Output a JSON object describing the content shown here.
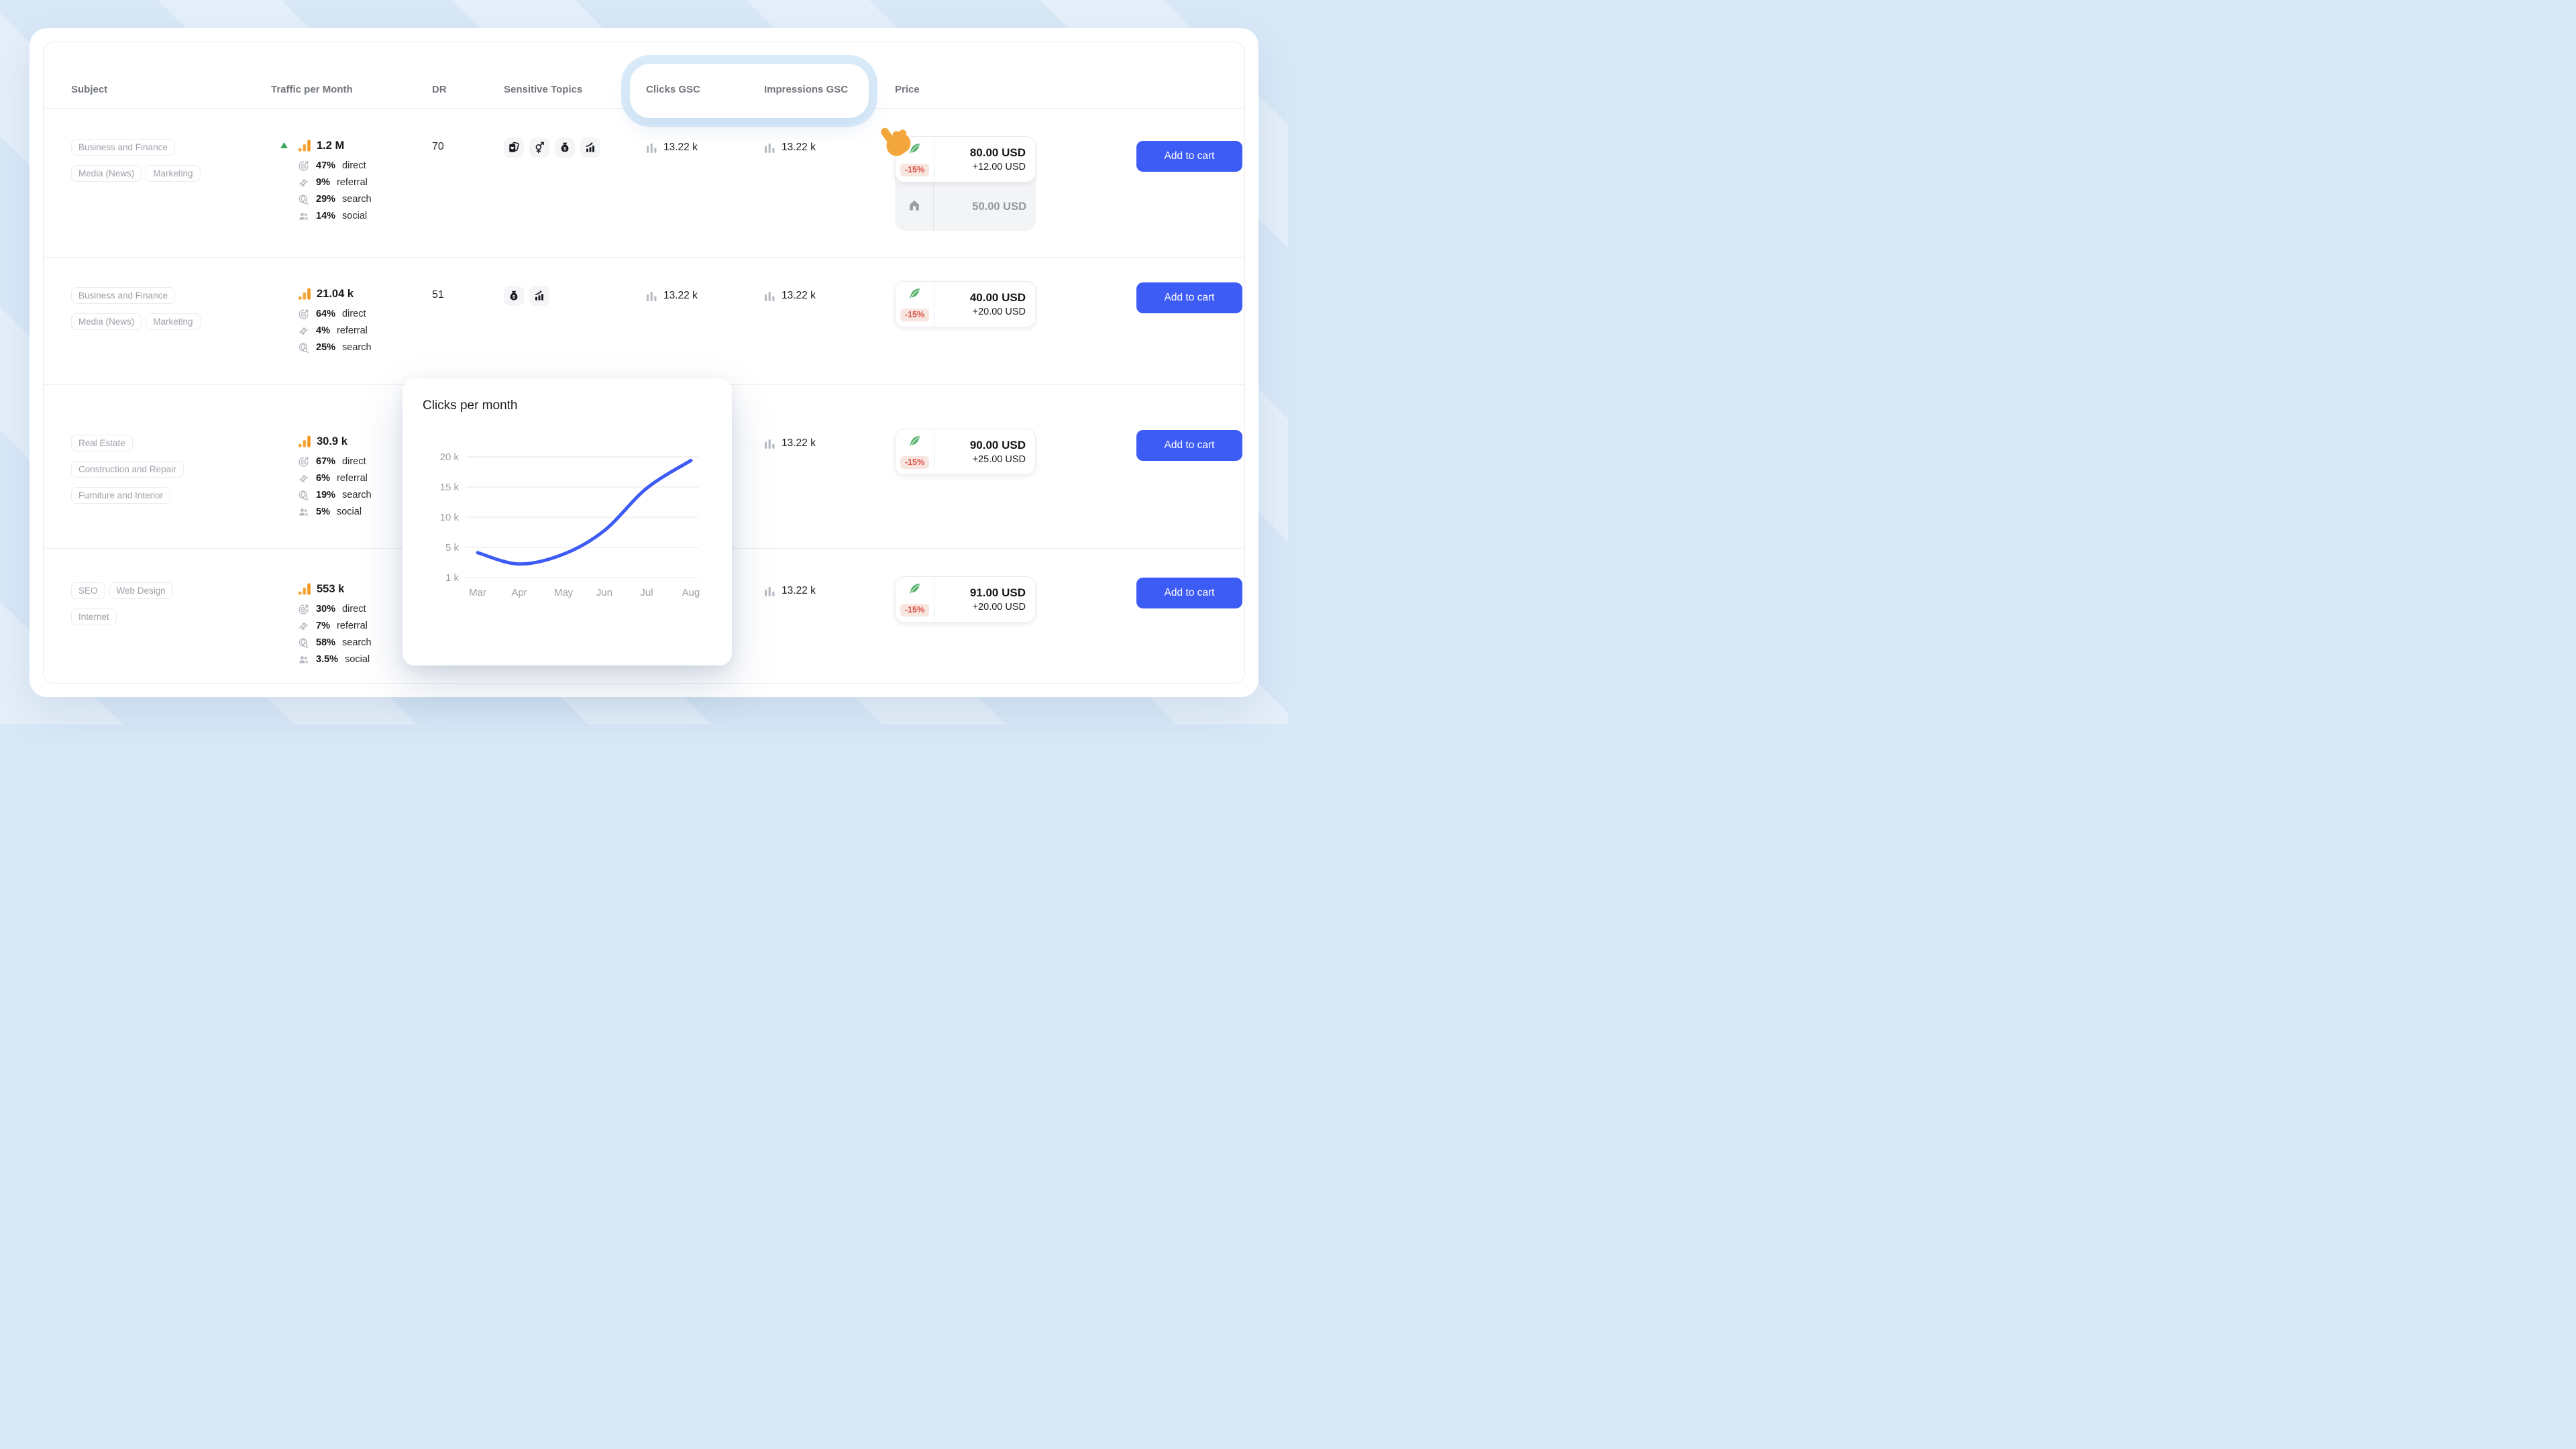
{
  "colors": {
    "accent_blue": "#3d5bf5",
    "feather_green": "#58b26c",
    "badge_red": "#dd4f45",
    "badge_bg": "#f7e5df",
    "traffic_orange": "#f5a52e",
    "trend_green": "#3fa45b",
    "page_bg": "#d8e8f7"
  },
  "add_to_cart_label": "Add to cart",
  "header": {
    "columns": [
      "Subject",
      "Traffic per Month",
      "DR",
      "Sensitive Topics",
      "Clicks GSC",
      "Impressions GSC",
      "Price"
    ]
  },
  "rows": [
    {
      "tags": [
        "Business and Finance",
        "Media (News)",
        "Marketing"
      ],
      "traffic": {
        "value": "1.2 M",
        "trend": "up",
        "sources": [
          {
            "value": "47%",
            "label": "direct",
            "icon": "direct-icon"
          },
          {
            "value": "9%",
            "label": "referral",
            "icon": "referral-icon"
          },
          {
            "value": "29%",
            "label": "search",
            "icon": "search-icon"
          },
          {
            "value": "14%",
            "label": "social",
            "icon": "social-icon"
          }
        ]
      },
      "dr": "70",
      "sensitive_topics": [
        "cards-icon",
        "gender-icon",
        "money-bag-icon",
        "chart-up-icon"
      ],
      "clicks_gsc": "13.22 k",
      "impressions_gsc": "13.22 k",
      "price": {
        "discount": "-15%",
        "amount": "80.00 USD",
        "extra": "+12.00 USD",
        "alt_amount": "50.00 USD"
      }
    },
    {
      "tags": [
        "Business and Finance",
        "Media (News)",
        "Marketing"
      ],
      "traffic": {
        "value": "21.04 k",
        "trend": "",
        "sources": [
          {
            "value": "64%",
            "label": "direct",
            "icon": "direct-icon"
          },
          {
            "value": "4%",
            "label": "referral",
            "icon": "referral-icon"
          },
          {
            "value": "25%",
            "label": "search",
            "icon": "search-icon"
          }
        ]
      },
      "dr": "51",
      "sensitive_topics": [
        "money-bag-icon",
        "chart-up-icon"
      ],
      "clicks_gsc": "13.22 k",
      "impressions_gsc": "13.22 k",
      "price": {
        "discount": "-15%",
        "amount": "40.00 USD",
        "extra": "+20.00 USD",
        "alt_amount": ""
      }
    },
    {
      "tags": [
        "Real Estate",
        "Construction and Repair",
        "Furniture and Interior"
      ],
      "traffic": {
        "value": "30.9 k",
        "trend": "",
        "sources": [
          {
            "value": "67%",
            "label": "direct",
            "icon": "direct-icon"
          },
          {
            "value": "6%",
            "label": "referral",
            "icon": "referral-icon"
          },
          {
            "value": "19%",
            "label": "search",
            "icon": "search-icon"
          },
          {
            "value": "5%",
            "label": "social",
            "icon": "social-icon"
          }
        ]
      },
      "dr": "",
      "sensitive_topics": [],
      "clicks_gsc": "",
      "impressions_gsc": "13.22 k",
      "price": {
        "discount": "-15%",
        "amount": "90.00 USD",
        "extra": "+25.00 USD",
        "alt_amount": ""
      }
    },
    {
      "tags": [
        "SEO",
        "Web Design",
        "Internet"
      ],
      "traffic": {
        "value": "553 k",
        "trend": "",
        "sources": [
          {
            "value": "30%",
            "label": "direct",
            "icon": "direct-icon"
          },
          {
            "value": "7%",
            "label": "referral",
            "icon": "referral-icon"
          },
          {
            "value": "58%",
            "label": "search",
            "icon": "search-icon"
          },
          {
            "value": "3.5%",
            "label": "social",
            "icon": "social-icon"
          }
        ]
      },
      "dr": "",
      "sensitive_topics": [],
      "clicks_gsc": "",
      "impressions_gsc": "13.22 k",
      "price": {
        "discount": "-15%",
        "amount": "91.00 USD",
        "extra": "+20.00 USD",
        "alt_amount": ""
      }
    }
  ],
  "popup": {
    "title": "Clicks per month",
    "chart_data": {
      "type": "line",
      "title": "Clicks per month",
      "x": [
        "Mar",
        "Apr",
        "May",
        "Jun",
        "Jul",
        "Aug"
      ],
      "values": [
        4300,
        2800,
        4100,
        7800,
        14800,
        19400
      ],
      "y_ticks": [
        "1 k",
        "5 k",
        "10 k",
        "15 k",
        "20 k"
      ],
      "y_tick_values": [
        1000,
        5000,
        10000,
        15000,
        20000
      ],
      "xlabel": "",
      "ylabel": "",
      "grid": "horizontal",
      "legend": "none",
      "line_color": "#3d5bf5"
    }
  }
}
